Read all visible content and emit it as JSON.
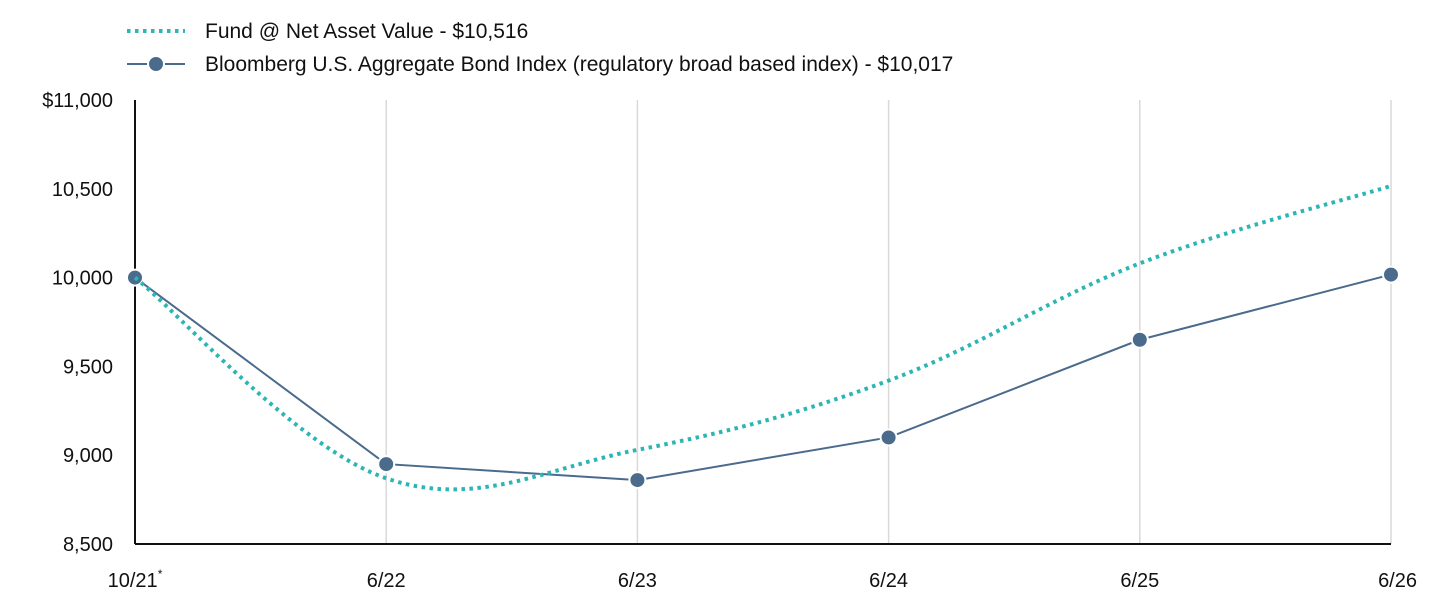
{
  "chart_data": {
    "type": "line",
    "categories": [
      "10/21",
      "6/22",
      "6/23",
      "6/24",
      "6/25",
      "6/26"
    ],
    "first_category_note": "*",
    "ylim": [
      8500,
      11000
    ],
    "yticks": [
      8500,
      9000,
      9500,
      10000,
      10500,
      11000
    ],
    "ytick_labels": [
      "8,500",
      "9,000",
      "9,500",
      "10,000",
      "10,500",
      "$11,000"
    ],
    "grid": "vertical",
    "legend_position": "top-left",
    "series": [
      {
        "name": "Fund @ Net Asset Value - $10,516",
        "values": [
          10000,
          8870,
          9030,
          9420,
          10080,
          10516
        ],
        "color": "#2bb5b5",
        "style": "dotted",
        "marker": "none"
      },
      {
        "name": "Bloomberg U.S. Aggregate Bond Index (regulatory broad based index) - $10,017",
        "values": [
          10000,
          8950,
          8860,
          9100,
          9650,
          10017
        ],
        "color": "#4a6b8c",
        "style": "solid",
        "marker": "circle"
      }
    ]
  }
}
